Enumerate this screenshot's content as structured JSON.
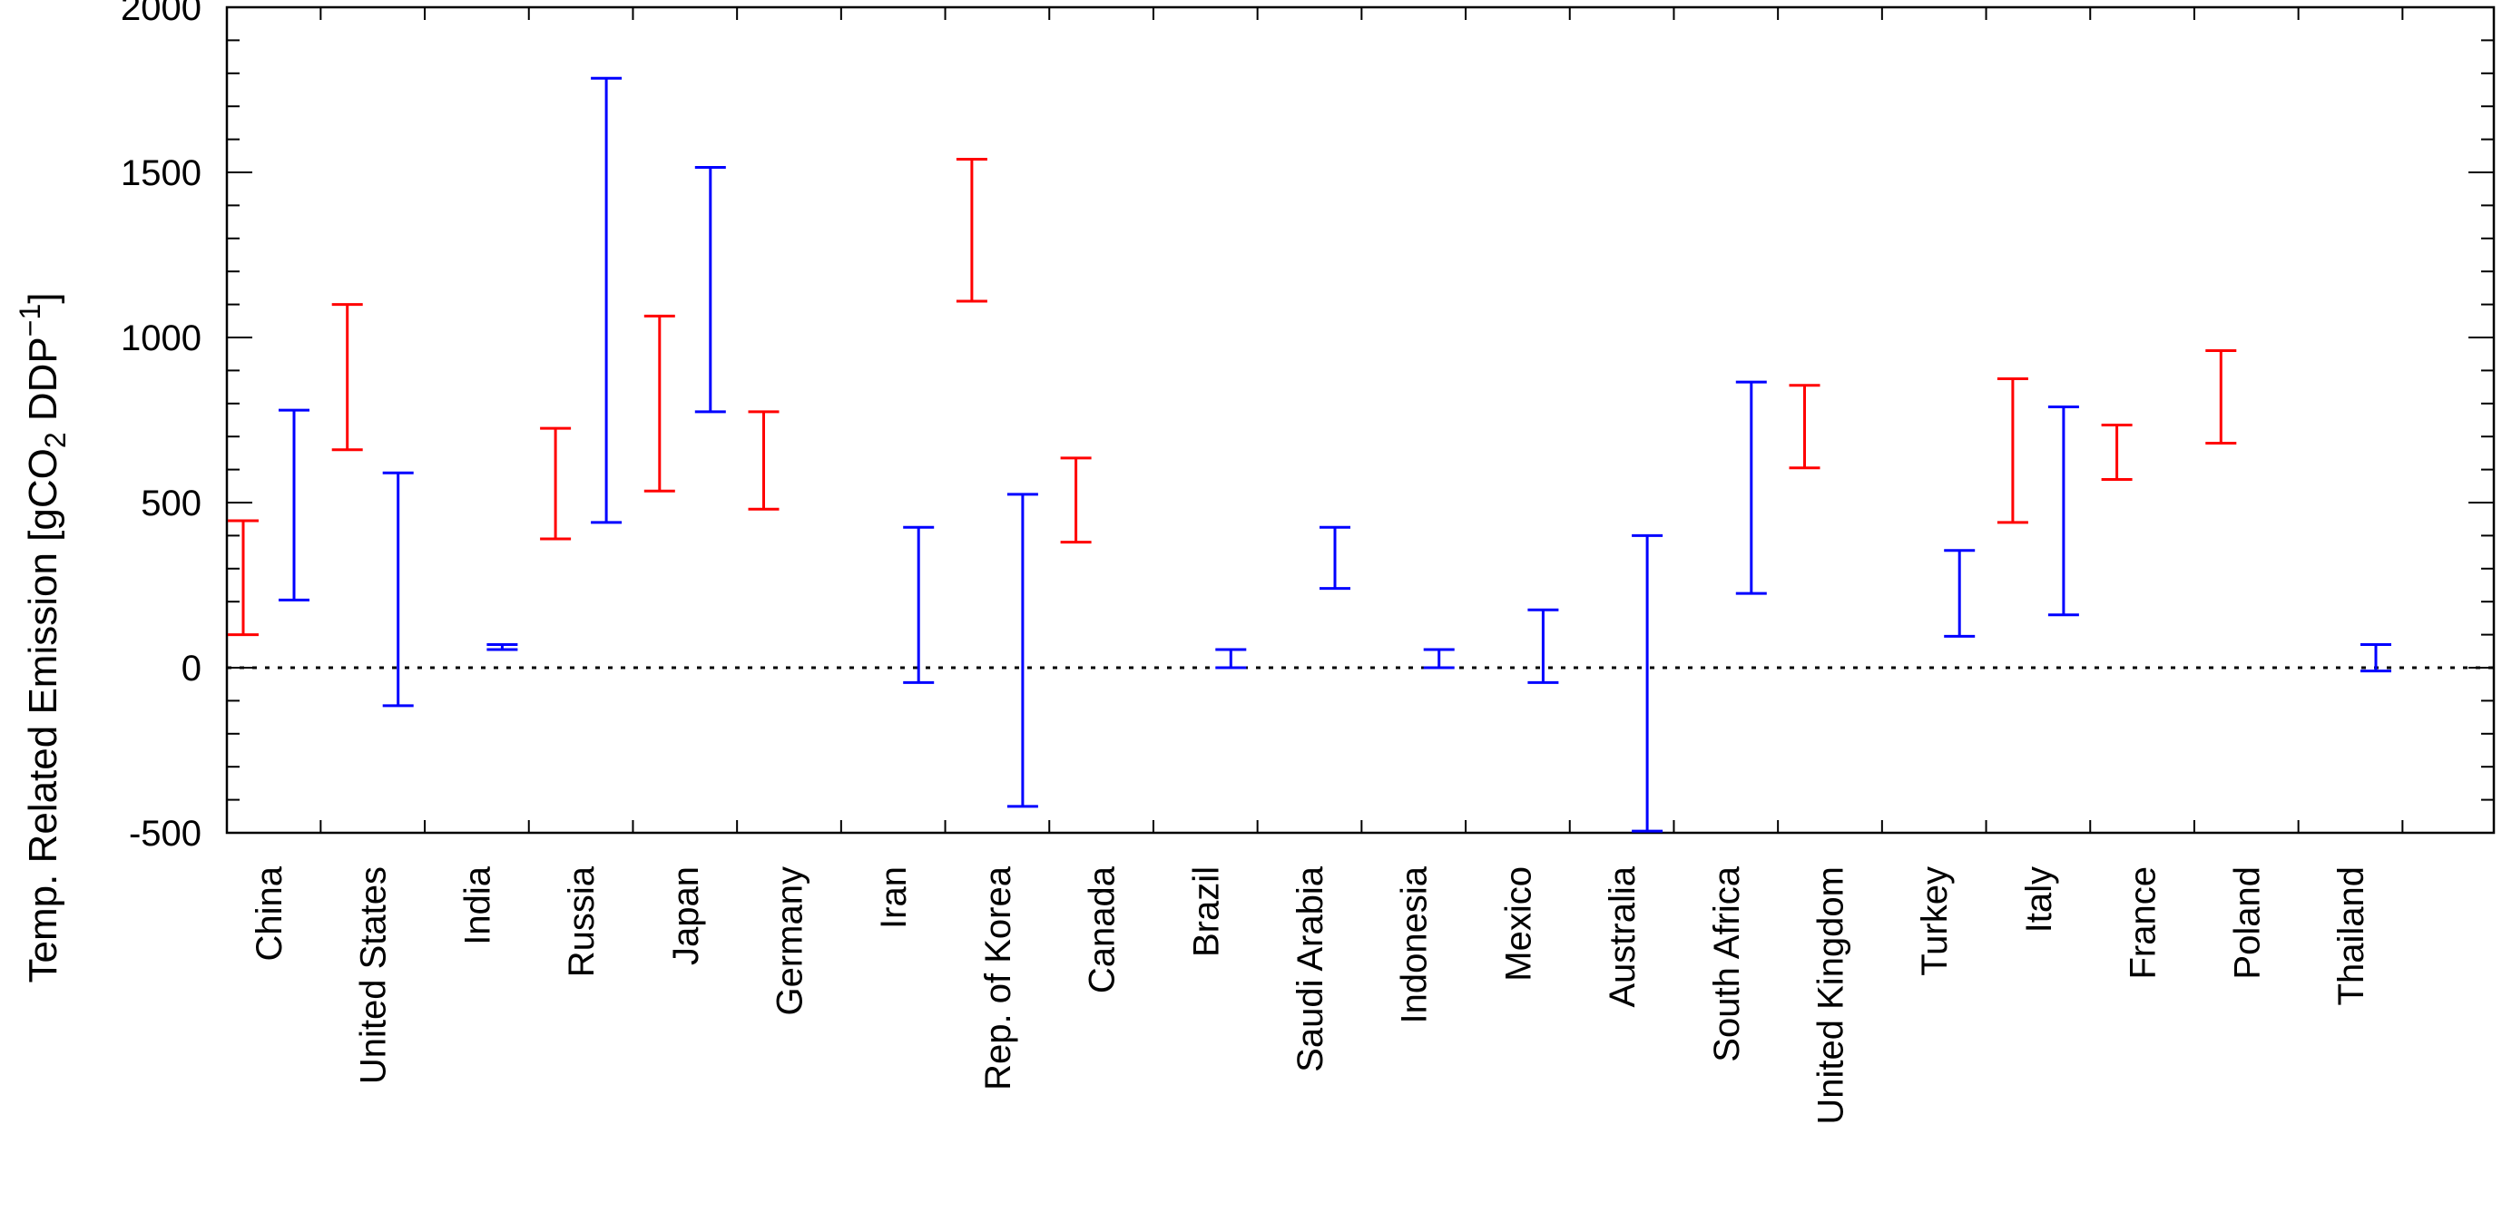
{
  "chart_data": {
    "type": "range",
    "ylabel": {
      "prefix": "Temp. Related Emission [gCO",
      "sub": "2",
      "middle": " DDP",
      "sup": "−1",
      "suffix": "]"
    },
    "xlabel": "",
    "ylim": [
      -500,
      2000
    ],
    "yticks": [
      -500,
      0,
      500,
      1000,
      1500,
      2000
    ],
    "y_minor_step": 100,
    "zero_line": "dotted",
    "categories": [
      "China",
      "United States",
      "India",
      "Russia",
      "Japan",
      "Germany",
      "Iran",
      "Rep. of Korea",
      "Canada",
      "Brazil",
      "Saudi Arabia",
      "Indonesia",
      "Mexico",
      "Australia",
      "South Africa",
      "United Kingdom",
      "Turkey",
      "Italy",
      "France",
      "Poland",
      "Thailand"
    ],
    "series": [
      {
        "name": "red",
        "color": "#ff0000",
        "ranges": [
          {
            "category": "China",
            "low": 100,
            "high": 445
          },
          {
            "category": "United States",
            "low": 660,
            "high": 1100
          },
          {
            "category": "Russia",
            "low": 390,
            "high": 725
          },
          {
            "category": "Japan",
            "low": 535,
            "high": 1065
          },
          {
            "category": "Germany",
            "low": 480,
            "high": 775
          },
          {
            "category": "Rep. of Korea",
            "low": 1110,
            "high": 1540
          },
          {
            "category": "Canada",
            "low": 380,
            "high": 635
          },
          {
            "category": "United Kingdom",
            "low": 605,
            "high": 855
          },
          {
            "category": "Italy",
            "low": 440,
            "high": 875
          },
          {
            "category": "France",
            "low": 570,
            "high": 735
          },
          {
            "category": "Poland",
            "low": 680,
            "high": 960
          }
        ]
      },
      {
        "name": "blue",
        "color": "#0000ff",
        "ranges": [
          {
            "category": "China",
            "low": 205,
            "high": 780
          },
          {
            "category": "United States",
            "low": -115,
            "high": 590
          },
          {
            "category": "India",
            "low": 55,
            "high": 70
          },
          {
            "category": "Russia",
            "low": 440,
            "high": 1785
          },
          {
            "category": "Japan",
            "low": 775,
            "high": 1515
          },
          {
            "category": "Iran",
            "low": -45,
            "high": 425
          },
          {
            "category": "Rep. of Korea",
            "low": -420,
            "high": 525
          },
          {
            "category": "Brazil",
            "low": 0,
            "high": 55
          },
          {
            "category": "Saudi Arabia",
            "low": 240,
            "high": 425
          },
          {
            "category": "Indonesia",
            "low": 0,
            "high": 55
          },
          {
            "category": "Mexico",
            "low": -45,
            "high": 175
          },
          {
            "category": "Australia",
            "low": -495,
            "high": 400
          },
          {
            "category": "South Africa",
            "low": 225,
            "high": 865
          },
          {
            "category": "Turkey",
            "low": 95,
            "high": 355
          },
          {
            "category": "Italy",
            "low": 160,
            "high": 790
          },
          {
            "category": "Thailand",
            "low": -10,
            "high": 70
          }
        ]
      }
    ],
    "legend": null
  }
}
